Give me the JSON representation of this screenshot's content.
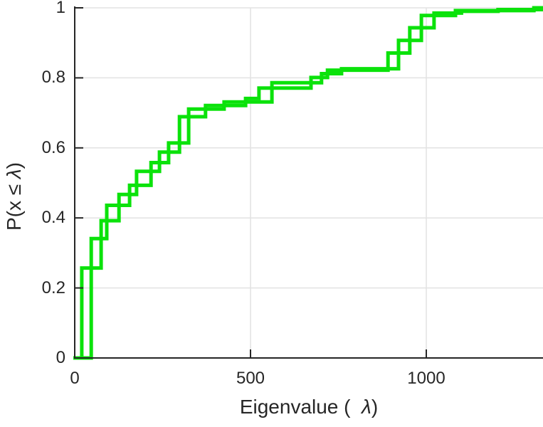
{
  "figure": {
    "background": "#ffffff",
    "xlabel": {
      "prefix": "Eigenvalue (  ",
      "lambda": "λ",
      "suffix": ")"
    },
    "ylabel": {
      "prefix": "P(x ≤ ",
      "lambda": "λ",
      "suffix": ")"
    }
  },
  "chart_data": {
    "type": "line",
    "subtype": "empirical-cdf-stairs",
    "title": "",
    "xlabel": "Eigenvalue ( λ)",
    "ylabel": "P(x ≤ λ)",
    "line_color": "#0be20b",
    "line_width": 5,
    "axis_color": "#262626",
    "grid_color": "#e2e2e2",
    "grid": true,
    "legend": "none",
    "xlim": [
      0,
      1332
    ],
    "ylim": [
      0,
      1
    ],
    "x_ticks": [
      0,
      500,
      1000
    ],
    "x_tick_labels": [
      "0",
      "500",
      "1000"
    ],
    "y_ticks": [
      0,
      0.2,
      0.4,
      0.6,
      0.8,
      1
    ],
    "y_tick_labels": [
      "0",
      "0.2",
      "0.4",
      "0.6",
      "0.8",
      "1"
    ],
    "series": [
      {
        "name": "ecdf-steps-a",
        "start_y": 0,
        "steps": [
          [
            20,
            0.257
          ],
          [
            75,
            0.392
          ],
          [
            126,
            0.467
          ],
          [
            176,
            0.533
          ],
          [
            241,
            0.588
          ],
          [
            298,
            0.689
          ],
          [
            372,
            0.721
          ],
          [
            486,
            0.741
          ],
          [
            524,
            0.771
          ],
          [
            672,
            0.801
          ],
          [
            719,
            0.822
          ],
          [
            891,
            0.871
          ],
          [
            953,
            0.943
          ],
          [
            1022,
            0.985
          ],
          [
            1100,
            0.99
          ],
          [
            1204,
            0.995
          ]
        ],
        "end_x": 1332
      },
      {
        "name": "ecdf-steps-b",
        "start_y": 0,
        "steps": [
          [
            47,
            0.341
          ],
          [
            91,
            0.436
          ],
          [
            156,
            0.493
          ],
          [
            217,
            0.558
          ],
          [
            267,
            0.614
          ],
          [
            324,
            0.711
          ],
          [
            425,
            0.731
          ],
          [
            561,
            0.786
          ],
          [
            702,
            0.812
          ],
          [
            759,
            0.826
          ],
          [
            921,
            0.907
          ],
          [
            986,
            0.978
          ],
          [
            1083,
            0.992
          ],
          [
            1306,
            1.0
          ]
        ],
        "end_x": 1332
      }
    ]
  }
}
